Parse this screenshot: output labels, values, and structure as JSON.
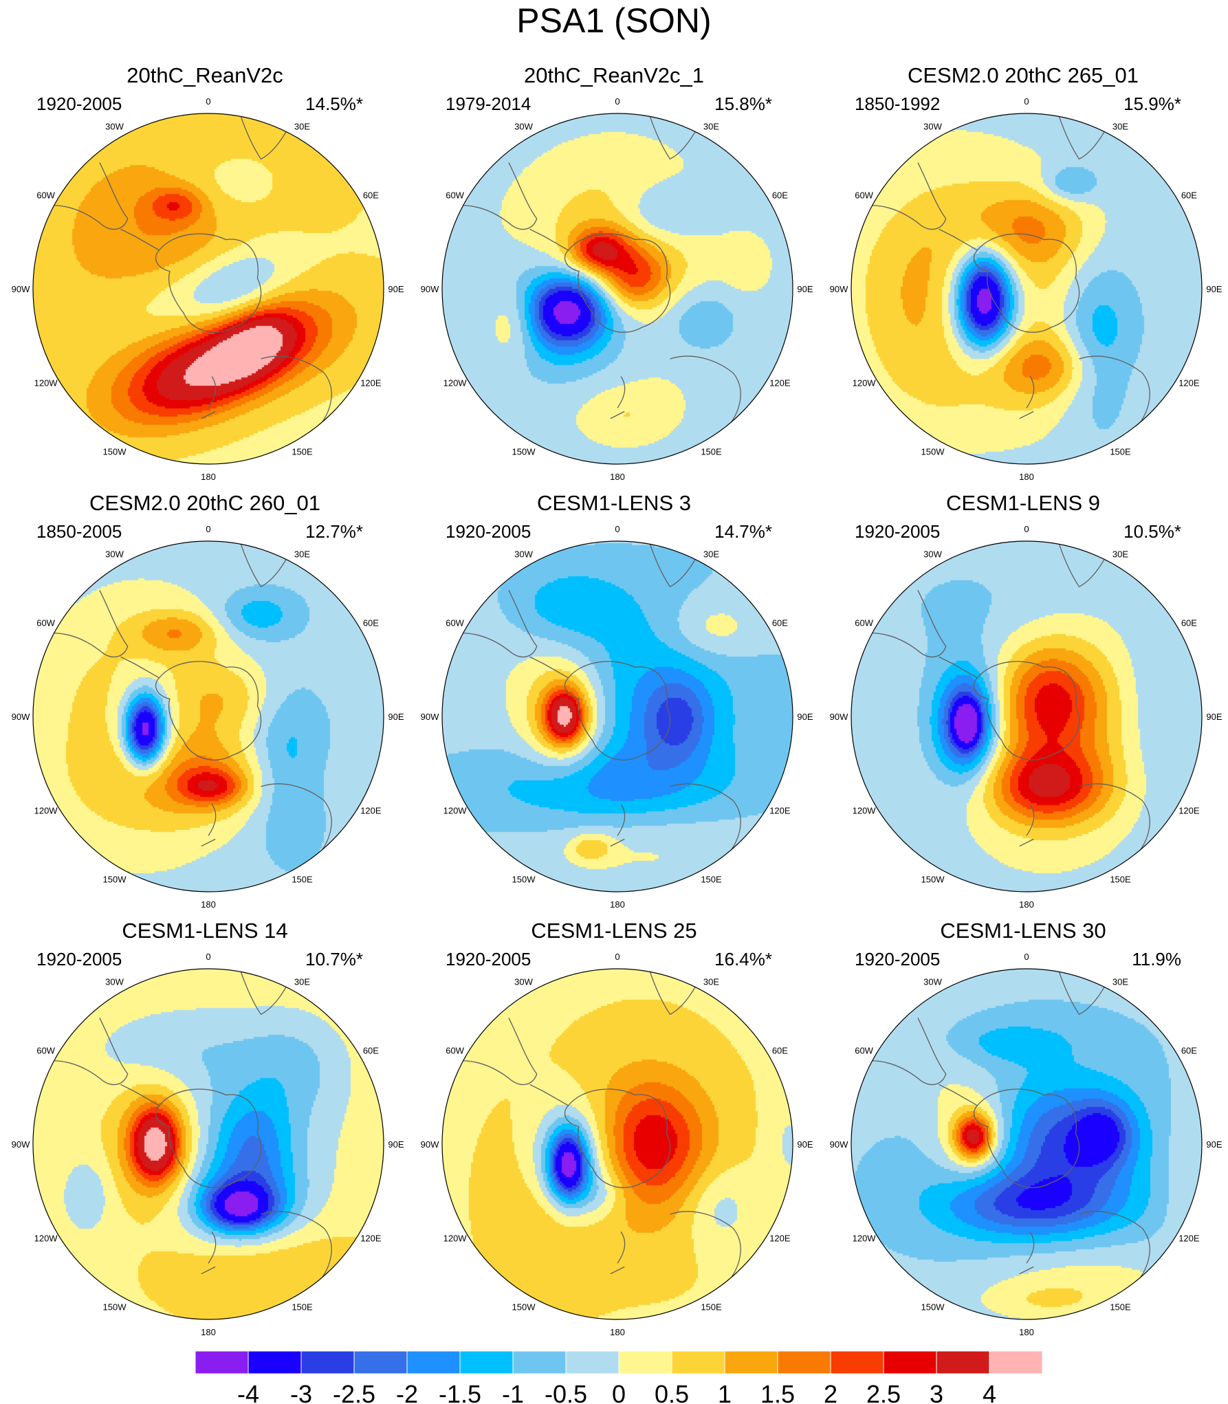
{
  "title": "PSA1 (SON)",
  "chart_data": {
    "type": "polar-stereographic contour map panels",
    "title": "PSA1 (SON)",
    "longitude_labels": [
      "0",
      "30E",
      "60E",
      "90E",
      "120E",
      "150E",
      "180",
      "150W",
      "120W",
      "90W",
      "60W",
      "30W"
    ],
    "colorbar": {
      "boundaries": [
        "-4",
        "-3",
        "-2.5",
        "-2",
        "-1.5",
        "-1",
        "-0.5",
        "0",
        "0.5",
        "1",
        "1.5",
        "2",
        "2.5",
        "3",
        "4"
      ],
      "colors": [
        "#8a1ef0",
        "#1a00ff",
        "#2a3ee6",
        "#3570e8",
        "#1e90ff",
        "#00bfff",
        "#6ec6f0",
        "#b0dcf0",
        "#fff68f",
        "#fcd437",
        "#f9a60f",
        "#f97a00",
        "#f93c00",
        "#e60000",
        "#d11a1a",
        "#ffb3b3"
      ]
    },
    "panels": [
      {
        "title": "20thC_ReanV2c",
        "period": "1920-2005",
        "percent": "14.5%*",
        "background": 0.4,
        "features": [
          [
            -0.14,
            -0.2,
            0.75,
            0.6,
            0,
            1.6
          ],
          [
            0.06,
            0.02,
            0.62,
            0.3,
            -20,
            -1.4
          ],
          [
            0.16,
            -0.02,
            0.3,
            0.18,
            -30,
            -0.9
          ],
          [
            -0.02,
            0.16,
            0.92,
            0.4,
            25,
            -0.4
          ],
          [
            0.46,
            0.28,
            0.46,
            0.34,
            0,
            0.6
          ],
          [
            -0.04,
            0.4,
            0.58,
            0.25,
            -20,
            1.8
          ],
          [
            0.08,
            0.46,
            0.5,
            0.2,
            -25,
            2.4
          ],
          [
            0.26,
            0.32,
            0.22,
            0.14,
            -35,
            1.8
          ],
          [
            0.1,
            -0.56,
            0.35,
            0.24,
            0,
            -0.9
          ],
          [
            -0.18,
            -0.48,
            0.16,
            0.1,
            0,
            1.4
          ]
        ]
      },
      {
        "title": "20thC_ReanV2c_1",
        "period": "1979-2014",
        "percent": "15.8%*",
        "background": -0.4,
        "features": [
          [
            -0.05,
            -0.05,
            0.95,
            0.95,
            0,
            0.7
          ],
          [
            0.0,
            -0.16,
            0.4,
            0.44,
            0,
            1.3
          ],
          [
            -0.1,
            -0.22,
            0.16,
            0.12,
            0,
            2.3
          ],
          [
            0.1,
            -0.06,
            0.18,
            0.16,
            0,
            1.6
          ],
          [
            -0.28,
            0.16,
            0.44,
            0.34,
            0,
            -2.1
          ],
          [
            -0.28,
            0.12,
            0.2,
            0.18,
            0,
            -3.2
          ],
          [
            0.24,
            -0.42,
            0.28,
            0.18,
            0,
            -1.1
          ],
          [
            0.48,
            0.18,
            0.22,
            0.2,
            0,
            -1.0
          ],
          [
            -0.6,
            0.2,
            0.16,
            0.22,
            0,
            1.2
          ],
          [
            0.74,
            -0.14,
            0.12,
            0.14,
            0,
            0.5
          ],
          [
            0.05,
            0.72,
            0.25,
            0.16,
            0,
            0.6
          ]
        ]
      },
      {
        "title": "CESM2.0 20thC 265_01",
        "period": "1850-1992",
        "percent": "15.9%*",
        "background": -0.4,
        "features": [
          [
            -0.4,
            -0.05,
            0.75,
            0.9,
            0,
            0.8
          ],
          [
            -0.3,
            0.05,
            0.56,
            0.56,
            0,
            1.4
          ],
          [
            -0.24,
            0.08,
            0.26,
            0.4,
            0,
            -2.3
          ],
          [
            -0.24,
            0.06,
            0.14,
            0.24,
            0,
            -3.9
          ],
          [
            0.0,
            -0.34,
            0.35,
            0.22,
            0,
            1.2
          ],
          [
            0.1,
            0.44,
            0.32,
            0.18,
            0,
            1.3
          ],
          [
            0.4,
            0.3,
            0.22,
            0.45,
            0,
            -1.4
          ],
          [
            0.25,
            -0.6,
            0.15,
            0.1,
            0,
            -1.1
          ],
          [
            0.0,
            0.6,
            0.9,
            0.3,
            0,
            0.3
          ]
        ]
      },
      {
        "title": "CESM2.0 20thC 260_01",
        "period": "1850-2005",
        "percent": "12.7%*",
        "background": -0.4,
        "features": [
          [
            -0.4,
            0.05,
            0.72,
            0.85,
            0,
            0.9
          ],
          [
            -0.36,
            0.06,
            0.34,
            0.48,
            0,
            1.3
          ],
          [
            -0.36,
            0.06,
            0.22,
            0.34,
            0,
            -2.3
          ],
          [
            -0.36,
            0.08,
            0.1,
            0.18,
            0,
            -3.9
          ],
          [
            0.0,
            0.36,
            0.55,
            0.24,
            0,
            1.2
          ],
          [
            0.02,
            0.4,
            0.18,
            0.1,
            0,
            1.7
          ],
          [
            -0.18,
            -0.48,
            0.24,
            0.12,
            0,
            1.2
          ],
          [
            0.28,
            -0.58,
            0.22,
            0.14,
            0,
            -1.1
          ],
          [
            0.44,
            0.3,
            0.22,
            0.42,
            0,
            -1.3
          ],
          [
            0.14,
            -0.1,
            0.26,
            0.2,
            0,
            0.7
          ]
        ]
      },
      {
        "title": "CESM1-LENS 3",
        "period": "1920-2005",
        "percent": "14.7%*",
        "background": -0.4,
        "features": [
          [
            0.2,
            -0.1,
            0.55,
            0.55,
            0,
            -1.1
          ],
          [
            0.34,
            0.02,
            0.18,
            0.22,
            0,
            -1.5
          ],
          [
            -0.1,
            0.4,
            0.7,
            0.24,
            0,
            -1.2
          ],
          [
            -0.3,
            -0.64,
            0.35,
            0.22,
            0,
            -1.0
          ],
          [
            -0.3,
            0.0,
            0.22,
            0.3,
            0,
            2.2
          ],
          [
            -0.3,
            0.0,
            0.1,
            0.14,
            0,
            3.1
          ],
          [
            -0.55,
            -0.3,
            0.4,
            0.55,
            0,
            0.4
          ],
          [
            0.55,
            -0.5,
            0.26,
            0.18,
            0,
            0.9
          ],
          [
            0.15,
            0.72,
            0.6,
            0.26,
            0,
            0.6
          ],
          [
            -0.15,
            0.75,
            0.12,
            0.08,
            0,
            1.1
          ]
        ]
      },
      {
        "title": "CESM1-LENS 9",
        "period": "1920-2005",
        "percent": "10.5%*",
        "background": -0.4,
        "features": [
          [
            0.0,
            0.05,
            0.85,
            0.9,
            0,
            0.6
          ],
          [
            0.16,
            0.06,
            0.45,
            0.58,
            0,
            1.2
          ],
          [
            0.12,
            0.4,
            0.32,
            0.2,
            0,
            2.4
          ],
          [
            0.14,
            -0.1,
            0.26,
            0.28,
            0,
            1.6
          ],
          [
            -0.34,
            0.02,
            0.25,
            0.4,
            0,
            -1.6
          ],
          [
            -0.34,
            0.04,
            0.14,
            0.24,
            0,
            -2.6
          ],
          [
            -0.34,
            0.04,
            0.06,
            0.1,
            0,
            -3.2
          ],
          [
            -0.15,
            -0.6,
            0.6,
            0.32,
            0,
            -0.5
          ],
          [
            0.7,
            0.0,
            0.2,
            0.5,
            0,
            -0.4
          ]
        ]
      },
      {
        "title": "CESM1-LENS 14",
        "period": "1920-2005",
        "percent": "10.7%*",
        "background": 0.4,
        "features": [
          [
            0.2,
            0.0,
            0.55,
            0.6,
            0,
            -0.9
          ],
          [
            0.2,
            0.34,
            0.3,
            0.22,
            0,
            -2.0
          ],
          [
            0.18,
            0.36,
            0.18,
            0.12,
            0,
            -2.6
          ],
          [
            0.26,
            0.0,
            0.22,
            0.28,
            0,
            -1.4
          ],
          [
            -0.3,
            0.0,
            0.22,
            0.32,
            0,
            1.9
          ],
          [
            -0.3,
            0.0,
            0.12,
            0.18,
            0,
            3.0
          ],
          [
            -0.2,
            -0.55,
            0.55,
            0.25,
            0,
            -0.6
          ],
          [
            -0.7,
            0.3,
            0.14,
            0.22,
            0,
            -0.8
          ],
          [
            0.5,
            -0.45,
            0.3,
            0.3,
            0,
            -0.7
          ],
          [
            0.3,
            0.7,
            0.55,
            0.28,
            0,
            0.8
          ]
        ]
      },
      {
        "title": "CESM1-LENS 25",
        "period": "1920-2005",
        "percent": "16.4%*",
        "background": 0.4,
        "features": [
          [
            0.14,
            0.04,
            0.46,
            0.56,
            0,
            1.1
          ],
          [
            0.22,
            -0.02,
            0.26,
            0.3,
            0,
            1.5
          ],
          [
            -0.4,
            0.3,
            0.3,
            0.5,
            0,
            0.9
          ],
          [
            -0.28,
            0.1,
            0.24,
            0.34,
            0,
            -2.4
          ],
          [
            -0.28,
            0.12,
            0.1,
            0.18,
            0,
            -3.8
          ],
          [
            -0.1,
            0.28,
            0.16,
            0.14,
            0,
            -0.8
          ],
          [
            0.58,
            0.36,
            0.2,
            0.24,
            0,
            -0.8
          ],
          [
            0.98,
            0.0,
            0.12,
            0.3,
            0,
            -0.5
          ]
        ]
      },
      {
        "title": "CESM1-LENS 30",
        "period": "1920-2005",
        "percent": "11.9%",
        "background": -0.4,
        "features": [
          [
            0.1,
            0.1,
            0.7,
            0.6,
            0,
            -1.0
          ],
          [
            0.24,
            0.0,
            0.32,
            0.3,
            0,
            -1.4
          ],
          [
            0.0,
            0.34,
            0.48,
            0.18,
            0,
            -1.7
          ],
          [
            0.44,
            -0.06,
            0.16,
            0.18,
            0,
            -1.8
          ],
          [
            -0.3,
            -0.04,
            0.22,
            0.26,
            0,
            1.6
          ],
          [
            -0.3,
            -0.04,
            0.1,
            0.12,
            0,
            2.9
          ],
          [
            -0.55,
            -0.4,
            0.4,
            0.3,
            0,
            0.5
          ],
          [
            -0.1,
            -0.58,
            0.35,
            0.12,
            0,
            -0.8
          ],
          [
            0.3,
            0.75,
            0.6,
            0.22,
            0,
            0.8
          ],
          [
            0.9,
            0.2,
            0.15,
            0.5,
            0,
            0.5
          ],
          [
            0.1,
            0.9,
            0.4,
            0.12,
            0,
            0.7
          ]
        ]
      }
    ]
  }
}
